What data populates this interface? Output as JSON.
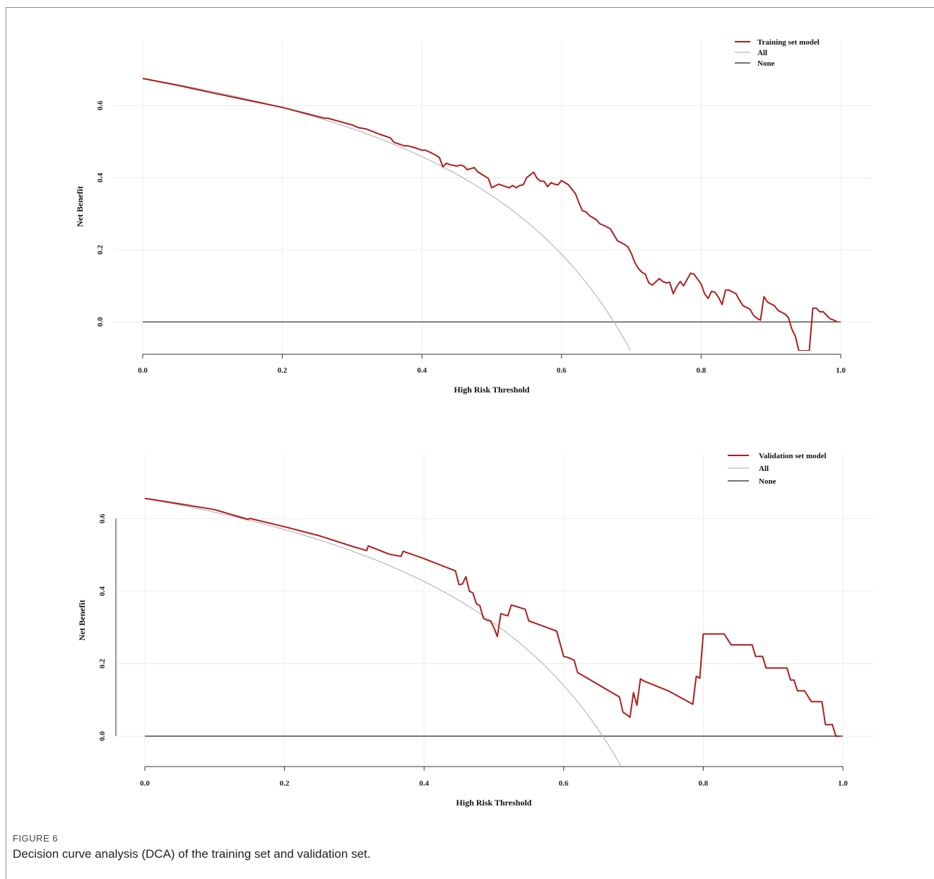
{
  "figure": {
    "label": "FIGURE 6",
    "caption": "Decision curve analysis (DCA) of the training set and validation set."
  },
  "colors": {
    "model": "#b01c1c",
    "all": "#b8b8b8",
    "none": "#222222",
    "grid": "#ececec"
  },
  "chart_data": [
    {
      "type": "line",
      "xlabel": "High Risk Threshold",
      "ylabel": "Net Benefit",
      "xlim": [
        0,
        1
      ],
      "ylim": [
        -0.08,
        0.72
      ],
      "x_ticks": [
        "0.0",
        "0.2",
        "0.4",
        "0.6",
        "0.8",
        "1.0"
      ],
      "y_ticks": [
        "0.0",
        "0.2",
        "0.4",
        "0.6"
      ],
      "grid": true,
      "legend_position": "top-right",
      "prevalence": 0.675,
      "series": [
        {
          "name": "Training set model",
          "x": [
            0.0,
            0.05,
            0.1,
            0.15,
            0.2,
            0.26,
            0.265,
            0.3,
            0.31,
            0.32,
            0.34,
            0.355,
            0.36,
            0.375,
            0.38,
            0.39,
            0.4,
            0.405,
            0.41,
            0.42,
            0.425,
            0.43,
            0.435,
            0.44,
            0.45,
            0.455,
            0.46,
            0.465,
            0.47,
            0.475,
            0.48,
            0.495,
            0.5,
            0.51,
            0.52,
            0.525,
            0.53,
            0.535,
            0.54,
            0.545,
            0.55,
            0.56,
            0.565,
            0.57,
            0.575,
            0.58,
            0.585,
            0.59,
            0.595,
            0.6,
            0.61,
            0.62,
            0.625,
            0.63,
            0.635,
            0.64,
            0.65,
            0.655,
            0.66,
            0.67,
            0.68,
            0.69,
            0.695,
            0.7,
            0.705,
            0.71,
            0.715,
            0.72,
            0.725,
            0.73,
            0.74,
            0.745,
            0.75,
            0.755,
            0.76,
            0.765,
            0.77,
            0.775,
            0.78,
            0.785,
            0.79,
            0.8,
            0.805,
            0.81,
            0.815,
            0.82,
            0.825,
            0.83,
            0.835,
            0.84,
            0.85,
            0.855,
            0.86,
            0.865,
            0.87,
            0.875,
            0.88,
            0.885,
            0.89,
            0.895,
            0.9,
            0.905,
            0.91,
            0.92,
            0.925,
            0.93,
            0.935,
            0.94,
            0.945,
            0.955,
            0.96,
            0.965,
            0.97,
            0.975,
            0.98,
            0.985,
            0.99,
            0.995
          ],
          "y": [
            0.675,
            0.656,
            0.635,
            0.615,
            0.595,
            0.565,
            0.565,
            0.546,
            0.538,
            0.535,
            0.52,
            0.51,
            0.498,
            0.488,
            0.488,
            0.483,
            0.476,
            0.476,
            0.472,
            0.462,
            0.456,
            0.43,
            0.44,
            0.436,
            0.432,
            0.435,
            0.432,
            0.422,
            0.425,
            0.428,
            0.416,
            0.398,
            0.372,
            0.382,
            0.375,
            0.372,
            0.378,
            0.372,
            0.378,
            0.38,
            0.4,
            0.415,
            0.398,
            0.39,
            0.39,
            0.375,
            0.386,
            0.382,
            0.38,
            0.392,
            0.38,
            0.355,
            0.33,
            0.308,
            0.305,
            0.295,
            0.283,
            0.272,
            0.268,
            0.258,
            0.225,
            0.215,
            0.208,
            0.19,
            0.165,
            0.148,
            0.138,
            0.132,
            0.108,
            0.102,
            0.12,
            0.112,
            0.108,
            0.11,
            0.078,
            0.098,
            0.112,
            0.1,
            0.118,
            0.135,
            0.132,
            0.105,
            0.078,
            0.065,
            0.085,
            0.082,
            0.068,
            0.048,
            0.088,
            0.088,
            0.078,
            0.06,
            0.045,
            0.04,
            0.035,
            0.018,
            0.01,
            0.005,
            0.07,
            0.055,
            0.05,
            0.045,
            0.032,
            0.022,
            0.012,
            -0.02,
            -0.04,
            -0.08,
            -0.08,
            -0.08,
            0.038,
            0.038,
            0.028,
            0.028,
            0.018,
            0.008,
            0.005,
            0.0
          ]
        },
        {
          "name": "All",
          "kind": "treat-all"
        },
        {
          "name": "None",
          "x": [
            0.0,
            1.0
          ],
          "y": [
            0.0,
            0.0
          ]
        }
      ]
    },
    {
      "type": "line",
      "xlabel": "High Risk Threshold",
      "ylabel": "Net Benefit",
      "xlim": [
        0,
        1
      ],
      "ylim": [
        -0.08,
        0.72
      ],
      "x_ticks": [
        "0.0",
        "0.2",
        "0.4",
        "0.6",
        "0.8",
        "1.0"
      ],
      "y_ticks": [
        "0.0",
        "0.2",
        "0.4",
        "0.6"
      ],
      "grid": true,
      "legend_position": "top-right",
      "prevalence": 0.656,
      "series": [
        {
          "name": "Validation set model",
          "x": [
            0.0,
            0.05,
            0.1,
            0.148,
            0.15,
            0.2,
            0.25,
            0.3,
            0.318,
            0.32,
            0.35,
            0.367,
            0.37,
            0.4,
            0.445,
            0.45,
            0.455,
            0.46,
            0.465,
            0.47,
            0.475,
            0.48,
            0.485,
            0.49,
            0.495,
            0.5,
            0.505,
            0.51,
            0.52,
            0.525,
            0.545,
            0.55,
            0.59,
            0.6,
            0.605,
            0.615,
            0.62,
            0.625,
            0.68,
            0.685,
            0.69,
            0.695,
            0.7,
            0.705,
            0.71,
            0.715,
            0.75,
            0.785,
            0.79,
            0.795,
            0.8,
            0.805,
            0.83,
            0.84,
            0.87,
            0.875,
            0.885,
            0.89,
            0.92,
            0.925,
            0.93,
            0.935,
            0.945,
            0.955,
            0.96,
            0.97,
            0.975,
            0.985,
            0.99,
            0.995
          ],
          "y": [
            0.656,
            0.641,
            0.625,
            0.598,
            0.601,
            0.578,
            0.553,
            0.522,
            0.512,
            0.525,
            0.502,
            0.496,
            0.51,
            0.49,
            0.456,
            0.418,
            0.42,
            0.44,
            0.4,
            0.395,
            0.365,
            0.36,
            0.325,
            0.32,
            0.318,
            0.3,
            0.275,
            0.338,
            0.332,
            0.362,
            0.35,
            0.318,
            0.29,
            0.22,
            0.218,
            0.21,
            0.175,
            0.17,
            0.108,
            0.066,
            0.06,
            0.052,
            0.12,
            0.085,
            0.158,
            0.152,
            0.125,
            0.088,
            0.165,
            0.16,
            0.282,
            0.282,
            0.282,
            0.252,
            0.252,
            0.22,
            0.22,
            0.188,
            0.188,
            0.155,
            0.155,
            0.125,
            0.125,
            0.095,
            0.095,
            0.095,
            0.032,
            0.032,
            0.0,
            0.0
          ]
        },
        {
          "name": "All",
          "kind": "treat-all"
        },
        {
          "name": "None",
          "x": [
            0.0,
            1.0
          ],
          "y": [
            0.0,
            0.0
          ]
        }
      ]
    }
  ]
}
